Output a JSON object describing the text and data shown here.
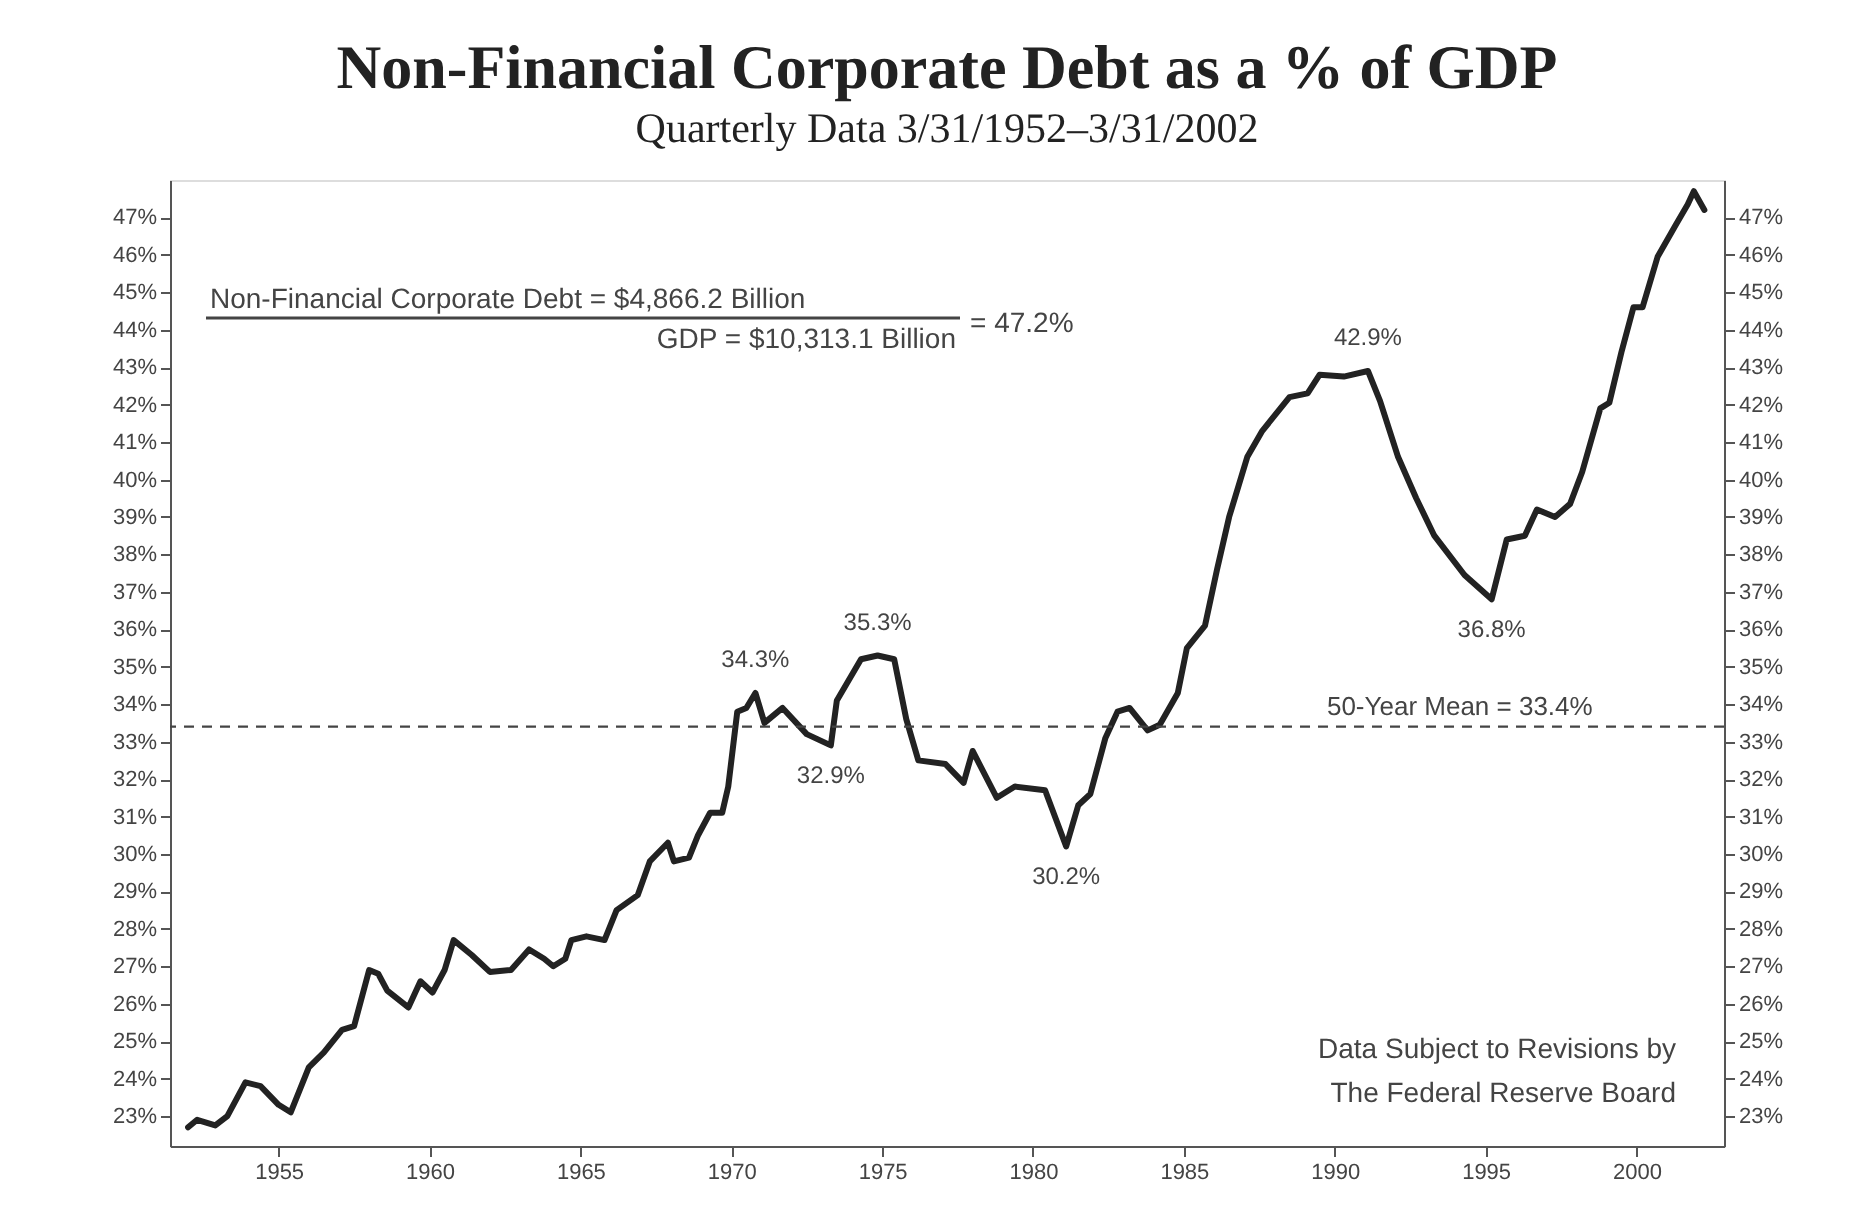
{
  "chart_data": {
    "type": "line",
    "title": "Non-Financial Corporate Debt as a % of GDP",
    "subtitle": "Quarterly Data 3/31/1952–3/31/2002",
    "x": [
      1952.0,
      1952.3,
      1952.9,
      1953.3,
      1953.9,
      1954.4,
      1955.0,
      1955.4,
      1956.0,
      1956.5,
      1957.1,
      1957.5,
      1958.0,
      1958.3,
      1958.6,
      1959.3,
      1959.7,
      1960.1,
      1960.5,
      1960.8,
      1961.4,
      1962.0,
      1962.7,
      1963.3,
      1963.8,
      1964.1,
      1964.5,
      1964.7,
      1965.2,
      1965.8,
      1966.2,
      1966.9,
      1967.3,
      1967.9,
      1968.1,
      1968.6,
      1968.9,
      1969.3,
      1969.7,
      1969.9,
      1970.2,
      1970.5,
      1970.8,
      1971.1,
      1971.7,
      1972.5,
      1973.3,
      1973.5,
      1974.3,
      1974.85,
      1975.4,
      1975.8,
      1976.2,
      1977.1,
      1977.7,
      1978.0,
      1978.8,
      1979.4,
      1980.4,
      1981.1,
      1981.5,
      1981.9,
      1982.4,
      1982.8,
      1983.2,
      1983.8,
      1984.2,
      1984.8,
      1985.1,
      1985.7,
      1986.1,
      1986.5,
      1987.1,
      1987.6,
      1988.5,
      1989.1,
      1989.5,
      1990.3,
      1991.1,
      1991.5,
      1992.1,
      1992.7,
      1993.3,
      1994.3,
      1995.2,
      1995.7,
      1996.3,
      1996.7,
      1997.3,
      1997.8,
      1998.2,
      1998.8,
      1999.1,
      1999.5,
      1999.9,
      2000.2,
      2000.7,
      2001.3,
      2001.7,
      2001.9,
      2002.25
    ],
    "series": [
      {
        "color": "#222222",
        "values": [
          22.7,
          22.9,
          22.75,
          23.0,
          23.9,
          23.8,
          23.3,
          23.1,
          24.3,
          24.7,
          25.3,
          25.4,
          26.9,
          26.8,
          26.35,
          25.9,
          26.6,
          26.3,
          26.9,
          27.7,
          27.3,
          26.85,
          26.9,
          27.45,
          27.2,
          27.0,
          27.2,
          27.7,
          27.8,
          27.7,
          28.5,
          28.9,
          29.8,
          30.3,
          29.8,
          29.9,
          30.5,
          31.1,
          31.1,
          31.8,
          33.8,
          33.9,
          34.3,
          33.5,
          33.9,
          33.2,
          32.9,
          34.1,
          35.2,
          35.3,
          35.2,
          33.6,
          32.5,
          32.4,
          31.9,
          32.75,
          31.5,
          31.8,
          31.7,
          30.2,
          31.3,
          31.6,
          33.1,
          33.8,
          33.9,
          33.3,
          33.45,
          34.3,
          35.5,
          36.1,
          37.6,
          39.0,
          40.6,
          41.3,
          42.2,
          42.3,
          42.8,
          42.75,
          42.9,
          42.1,
          40.6,
          39.5,
          38.5,
          37.45,
          36.8,
          38.4,
          38.5,
          39.2,
          39.0,
          39.35,
          40.2,
          41.9,
          42.05,
          43.4,
          44.6,
          44.6,
          45.95,
          46.8,
          47.35,
          47.7,
          47.2
        ]
      }
    ],
    "xlim": [
      1951.4,
      2002.9
    ],
    "xticks": [
      1955,
      1960,
      1965,
      1970,
      1975,
      1980,
      1985,
      1990,
      1995,
      2000
    ],
    "ylim": [
      22.2,
      48
    ],
    "yticks": [
      {
        "value": 23,
        "label": "23%"
      },
      {
        "value": 24,
        "label": "24%"
      },
      {
        "value": 25,
        "label": "25%"
      },
      {
        "value": 26,
        "label": "26%"
      },
      {
        "value": 27,
        "label": "27%"
      },
      {
        "value": 28,
        "label": "28%"
      },
      {
        "value": 29,
        "label": "29%"
      },
      {
        "value": 30,
        "label": "30%"
      },
      {
        "value": 31,
        "label": "31%"
      },
      {
        "value": 32,
        "label": "32%"
      },
      {
        "value": 33,
        "label": "33%"
      },
      {
        "value": 34,
        "label": "34%"
      },
      {
        "value": 35,
        "label": "35%"
      },
      {
        "value": 36,
        "label": "36%"
      },
      {
        "value": 37,
        "label": "37%"
      },
      {
        "value": 38,
        "label": "38%"
      },
      {
        "value": 39,
        "label": "39%"
      },
      {
        "value": 40,
        "label": "40%"
      },
      {
        "value": 41,
        "label": "41%"
      },
      {
        "value": 42,
        "label": "42%"
      },
      {
        "value": 43,
        "label": "43%"
      },
      {
        "value": 44,
        "label": "44%"
      },
      {
        "value": 45,
        "label": "45%"
      },
      {
        "value": 46,
        "label": "46%"
      },
      {
        "value": 47,
        "label": "47%"
      }
    ],
    "y2lim": [
      22.2,
      48
    ],
    "y2ticks": [
      {
        "value": 23,
        "label": "23%"
      },
      {
        "value": 24,
        "label": "24%"
      },
      {
        "value": 25,
        "label": "25%"
      },
      {
        "value": 26,
        "label": "26%"
      },
      {
        "value": 27,
        "label": "27%"
      },
      {
        "value": 28,
        "label": "28%"
      },
      {
        "value": 29,
        "label": "29%"
      },
      {
        "value": 30,
        "label": "30%"
      },
      {
        "value": 31,
        "label": "31%"
      },
      {
        "value": 32,
        "label": "32%"
      },
      {
        "value": 33,
        "label": "33%"
      },
      {
        "value": 34,
        "label": "34%"
      },
      {
        "value": 35,
        "label": "35%"
      },
      {
        "value": 36,
        "label": "36%"
      },
      {
        "value": 37,
        "label": "37%"
      },
      {
        "value": 38,
        "label": "38%"
      },
      {
        "value": 39,
        "label": "39%"
      },
      {
        "value": 40,
        "label": "40%"
      },
      {
        "value": 41,
        "label": "41%"
      },
      {
        "value": 42,
        "label": "42%"
      },
      {
        "value": 43,
        "label": "43%"
      },
      {
        "value": 44,
        "label": "44%"
      },
      {
        "value": 45,
        "label": "45%"
      },
      {
        "value": 46,
        "label": "46%"
      },
      {
        "value": 47,
        "label": "47%"
      }
    ],
    "ref_lines": [
      {
        "axis": "y",
        "value": 33.4,
        "label": "50-Year Mean = 33.4%",
        "color": "#444444",
        "line_style": "dashed"
      }
    ],
    "annotations": [
      "Non-Financial Corporate Debt = $4,866.2 Billion",
      "GDP = $10,313.1 Billion",
      "= 47.2%",
      "Data Subject to Revisions by\nThe Federal Reserve Board",
      {
        "text": "34.3%",
        "x": 1970.8,
        "y": 34.3
      },
      {
        "text": "35.3%",
        "x": 1974.85,
        "y": 35.3
      },
      {
        "text": "32.9%",
        "x": 1973.3,
        "y": 32.9
      },
      {
        "text": "30.2%",
        "x": 1981.1,
        "y": 30.2
      },
      {
        "text": "42.9%",
        "x": 1991.1,
        "y": 42.9
      },
      {
        "text": "36.8%",
        "x": 1995.2,
        "y": 36.8
      }
    ],
    "grid": false,
    "marker": "none",
    "line_style": "solid"
  }
}
